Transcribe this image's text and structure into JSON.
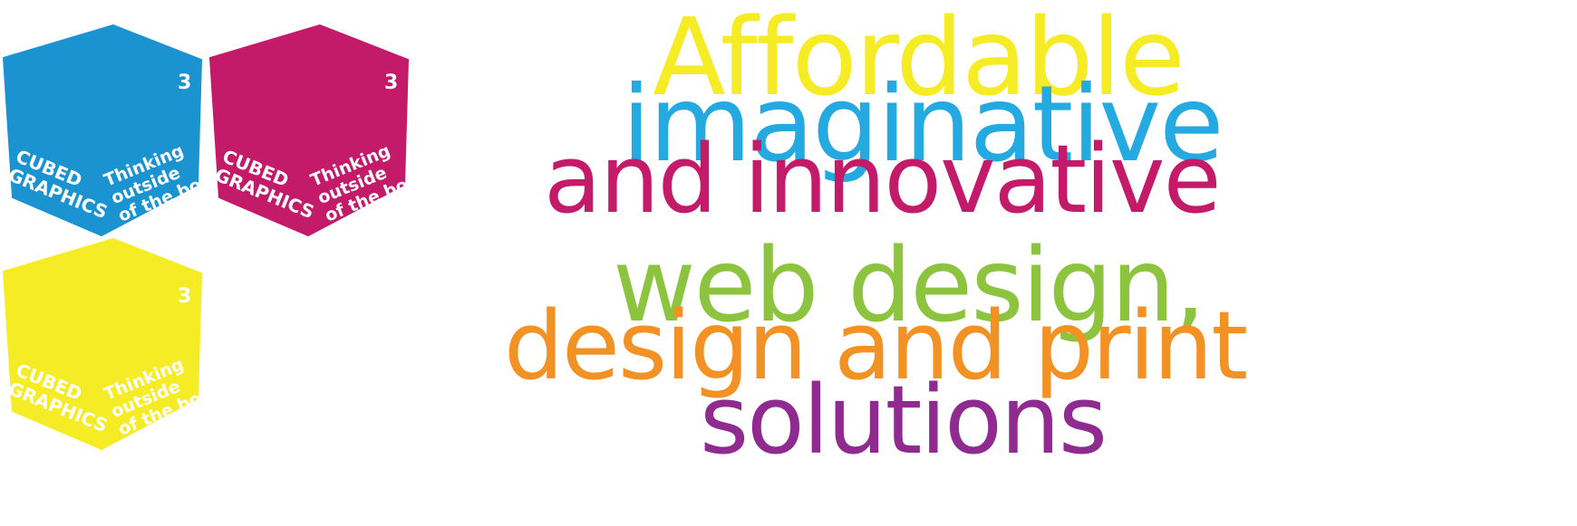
{
  "cubes": [
    {
      "color": "#1c93d1",
      "badge": "3",
      "brand_line1": "CUBED",
      "brand_line2": "GRAPHICS",
      "tag_line1": "Thinking",
      "tag_line2": "outside",
      "tag_line3": "of the box"
    },
    {
      "color": "#c41a6a",
      "badge": "3",
      "brand_line1": "CUBED",
      "brand_line2": "GRAPHICS",
      "tag_line1": "Thinking",
      "tag_line2": "outside",
      "tag_line3": "of the box"
    },
    {
      "color": "#f6ec25",
      "badge": "3",
      "brand_line1": "CUBED",
      "brand_line2": "GRAPHICS",
      "tag_line1": "Thinking",
      "tag_line2": "outside",
      "tag_line3": "of the box"
    }
  ],
  "slogan": {
    "affordable": {
      "text": "Affordable",
      "color": "#f6ec25"
    },
    "imaginative": {
      "text": "imaginative",
      "color": "#24a9e1"
    },
    "innovative": {
      "text": "and innovative",
      "color": "#c41a6a"
    },
    "web_design": {
      "text": "web design,",
      "color": "#8cc43f"
    },
    "print": {
      "text": "design and print",
      "color": "#f39224"
    },
    "solutions": {
      "text": "solutions",
      "color": "#8e2a90"
    }
  }
}
